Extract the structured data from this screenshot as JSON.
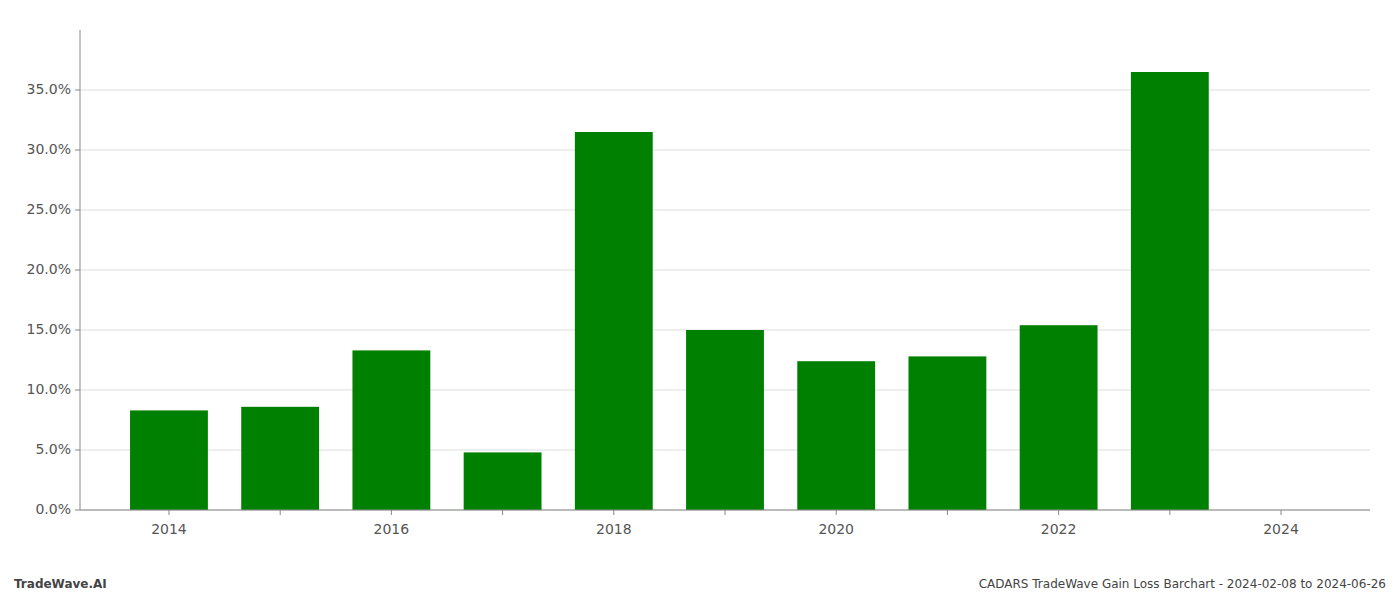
{
  "chart_data": {
    "type": "bar",
    "x": [
      2014,
      2015,
      2016,
      2017,
      2018,
      2019,
      2020,
      2021,
      2022,
      2023
    ],
    "values": [
      0.083,
      0.086,
      0.133,
      0.048,
      0.315,
      0.15,
      0.124,
      0.128,
      0.154,
      0.365
    ],
    "color": "#008000",
    "xlim": [
      2013.2,
      2024.8
    ],
    "xticks": [
      2014,
      {
        "value": 2015,
        "label": null
      },
      2016,
      {
        "value": 2017,
        "label": null
      },
      2018,
      {
        "value": 2019,
        "label": null
      },
      2020,
      {
        "value": 2021,
        "label": null
      },
      2022,
      {
        "value": 2023,
        "label": null
      },
      2024
    ],
    "ylim": [
      0,
      0.4
    ],
    "yticks": [
      {
        "value": 0.0,
        "label": "0.0%"
      },
      {
        "value": 0.05,
        "label": "5.0%"
      },
      {
        "value": 0.1,
        "label": "10.0%"
      },
      {
        "value": 0.15,
        "label": "15.0%"
      },
      {
        "value": 0.2,
        "label": "20.0%"
      },
      {
        "value": 0.25,
        "label": "25.0%"
      },
      {
        "value": 0.3,
        "label": "30.0%"
      },
      {
        "value": 0.35,
        "label": "35.0%"
      }
    ],
    "grid": true,
    "annotations": [
      "TradeWave.AI",
      "CADARS TradeWave Gain Loss Barchart - 2024-02-08 to 2024-06-26"
    ]
  }
}
